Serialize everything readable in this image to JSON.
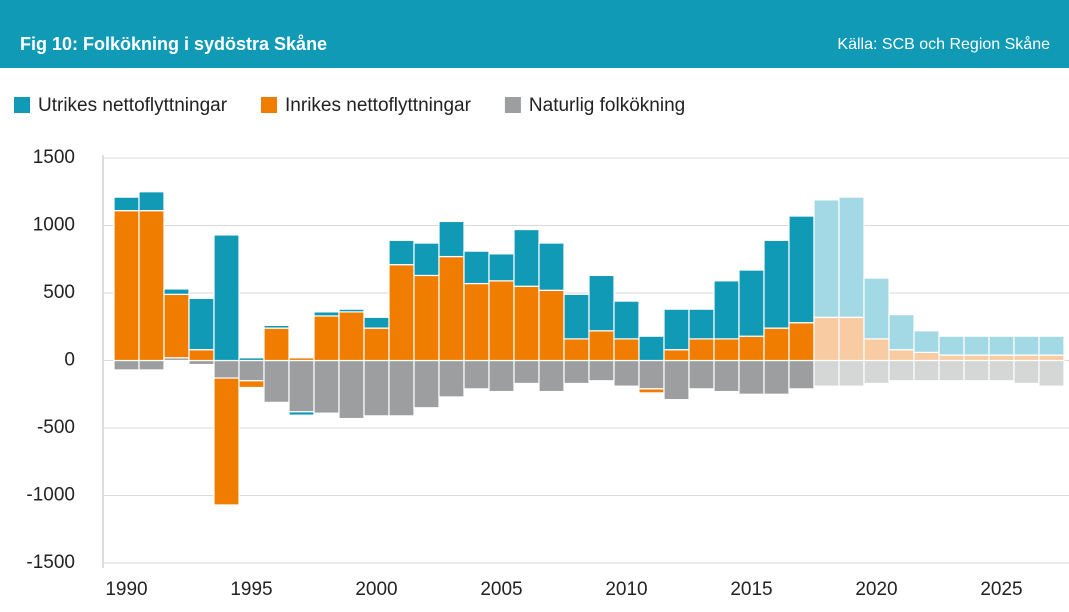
{
  "chart_data": {
    "type": "bar",
    "stacked": true,
    "title": "Fig 10: Folkökning i sydöstra Skåne",
    "source": "Källa: SCB och Region Skåne",
    "x": [
      1990,
      1991,
      1992,
      1993,
      1994,
      1995,
      1996,
      1997,
      1998,
      1999,
      2000,
      2001,
      2002,
      2003,
      2004,
      2005,
      2006,
      2007,
      2008,
      2009,
      2010,
      2011,
      2012,
      2013,
      2014,
      2015,
      2016,
      2017,
      2018,
      2019,
      2020,
      2021,
      2022,
      2023,
      2024,
      2025,
      2026,
      2027
    ],
    "forecast_from": 2018,
    "series": [
      {
        "name": "Utrikes nettoflyttningar",
        "color": "#109ab6",
        "forecast_color": "#a3d8e5",
        "values": [
          100,
          140,
          40,
          380,
          930,
          20,
          20,
          -25,
          30,
          20,
          80,
          180,
          240,
          260,
          240,
          200,
          420,
          350,
          330,
          410,
          280,
          180,
          300,
          220,
          430,
          490,
          650,
          790,
          870,
          890,
          450,
          260,
          160,
          140,
          140,
          140,
          140,
          140
        ]
      },
      {
        "name": "Inrikes nettoflyttningar",
        "color": "#f07d00",
        "forecast_color": "#f9cba3",
        "values": [
          1110,
          1110,
          470,
          80,
          -940,
          -50,
          240,
          20,
          330,
          360,
          240,
          710,
          630,
          770,
          570,
          590,
          550,
          520,
          160,
          220,
          160,
          -30,
          80,
          160,
          160,
          180,
          240,
          280,
          320,
          320,
          160,
          80,
          60,
          40,
          40,
          40,
          40,
          40
        ]
      },
      {
        "name": "Naturlig folkökning",
        "color": "#9c9e9f",
        "forecast_color": "#d5d6d6",
        "values": [
          -70,
          -70,
          20,
          -30,
          -130,
          -150,
          -310,
          -380,
          -390,
          -430,
          -410,
          -410,
          -350,
          -270,
          -210,
          -230,
          -170,
          -230,
          -170,
          -150,
          -190,
          -210,
          -290,
          -210,
          -230,
          -250,
          -250,
          -210,
          -190,
          -190,
          -170,
          -150,
          -150,
          -150,
          -150,
          -150,
          -170,
          -190
        ]
      }
    ],
    "ylim": [
      -1500,
      1500
    ],
    "yticks": [
      -1500,
      -1000,
      -500,
      0,
      500,
      1000,
      1500
    ],
    "xticks": [
      1990,
      1995,
      2000,
      2005,
      2010,
      2015,
      2020,
      2025
    ],
    "grid": true
  }
}
